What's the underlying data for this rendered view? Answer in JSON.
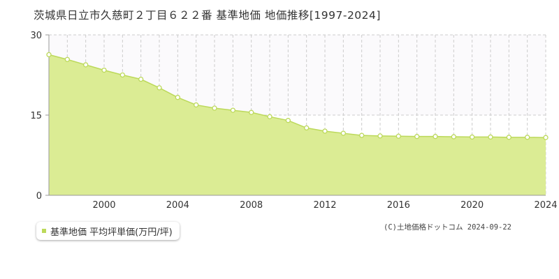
{
  "chart_data": {
    "type": "area",
    "title": "茨城県日立市久慈町２丁目６２２番 基準地価 地価推移[1997-2024]",
    "xlabel": "",
    "ylabel": "",
    "x": [
      1997,
      1998,
      1999,
      2000,
      2001,
      2002,
      2003,
      2004,
      2005,
      2006,
      2007,
      2008,
      2009,
      2010,
      2011,
      2012,
      2013,
      2014,
      2015,
      2016,
      2017,
      2018,
      2019,
      2020,
      2021,
      2022,
      2023,
      2024
    ],
    "series": [
      {
        "name": "基準地価 平均坪単価(万円/坪)",
        "values": [
          26.3,
          25.4,
          24.4,
          23.4,
          22.5,
          21.7,
          20.1,
          18.3,
          16.9,
          16.3,
          15.9,
          15.5,
          14.7,
          14.0,
          12.6,
          12.0,
          11.6,
          11.2,
          11.1,
          11.05,
          11.0,
          11.0,
          10.95,
          10.9,
          10.9,
          10.85,
          10.85,
          10.8
        ]
      }
    ],
    "xlim": [
      1997,
      2024
    ],
    "ylim": [
      0,
      30
    ],
    "y_ticks": [
      0,
      15,
      30
    ],
    "x_tick_labels": [
      "2000",
      "2004",
      "2008",
      "2012",
      "2016",
      "2020",
      "2024"
    ],
    "grid": true,
    "legend_position": "bottom-left",
    "colors": {
      "area_fill": "#dbec94",
      "line": "#bcd95a",
      "marker_fill": "#ffffff",
      "marker_stroke": "#bcd95a",
      "legend_swatch": "#bcd95a",
      "grid": "#cccccc",
      "axis": "#999999"
    }
  },
  "legend": {
    "label": "基準地価 平均坪単価(万円/坪)"
  },
  "footer": {
    "copyright": "(C)土地価格ドットコム 2024-09-22"
  }
}
